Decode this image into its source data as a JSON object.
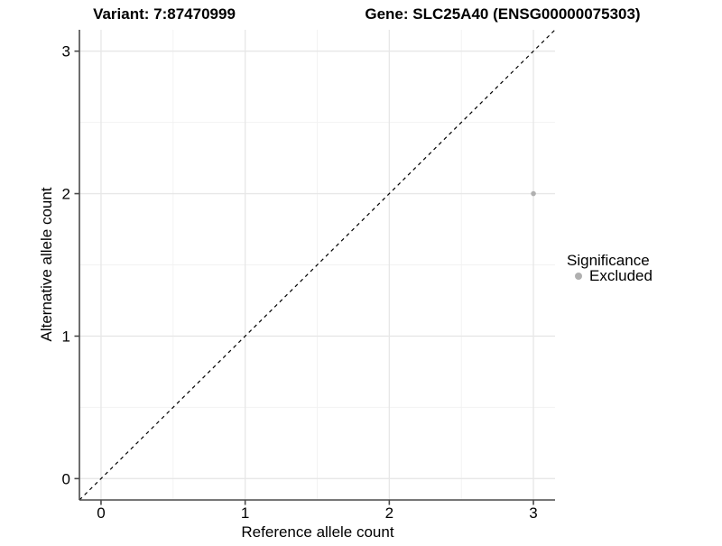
{
  "chart_data": {
    "type": "scatter",
    "titles": {
      "left": "Variant: 7:87470999",
      "right": "Gene: SLC25A40 (ENSG00000075303)"
    },
    "xlabel": "Reference allele count",
    "ylabel": "Alternative allele count",
    "x_ticks": {
      "values": [
        0,
        1,
        2,
        3
      ],
      "labels": [
        "0",
        "1",
        "2",
        "3"
      ]
    },
    "y_ticks": {
      "values": [
        0,
        1,
        2,
        3
      ],
      "labels": [
        "0",
        "1",
        "2",
        "3"
      ]
    },
    "x_minor": [
      0.5,
      1.5,
      2.5
    ],
    "y_minor": [
      0.5,
      1.5,
      2.5
    ],
    "xlim": [
      -0.15,
      3.15
    ],
    "ylim": [
      -0.15,
      3.15
    ],
    "grid": true,
    "abline": {
      "slope": 1,
      "intercept": 0,
      "linestyle": "dashed",
      "color": "#000000"
    },
    "series": [
      {
        "name": "Excluded",
        "color": "#b0b0b0",
        "points": [
          {
            "x": 3,
            "y": 2
          }
        ]
      }
    ],
    "legend": {
      "title": "Significance",
      "position": "right",
      "items": [
        {
          "label": "Excluded",
          "color": "#b0b0b0",
          "marker": "circle"
        }
      ]
    },
    "colors": {
      "grid_major": "#e7e7e7",
      "grid_minor": "#f2f2f2",
      "axis": "#4a4a4a",
      "point": "#b0b0b0",
      "text": "#000000",
      "background": "#ffffff"
    }
  }
}
